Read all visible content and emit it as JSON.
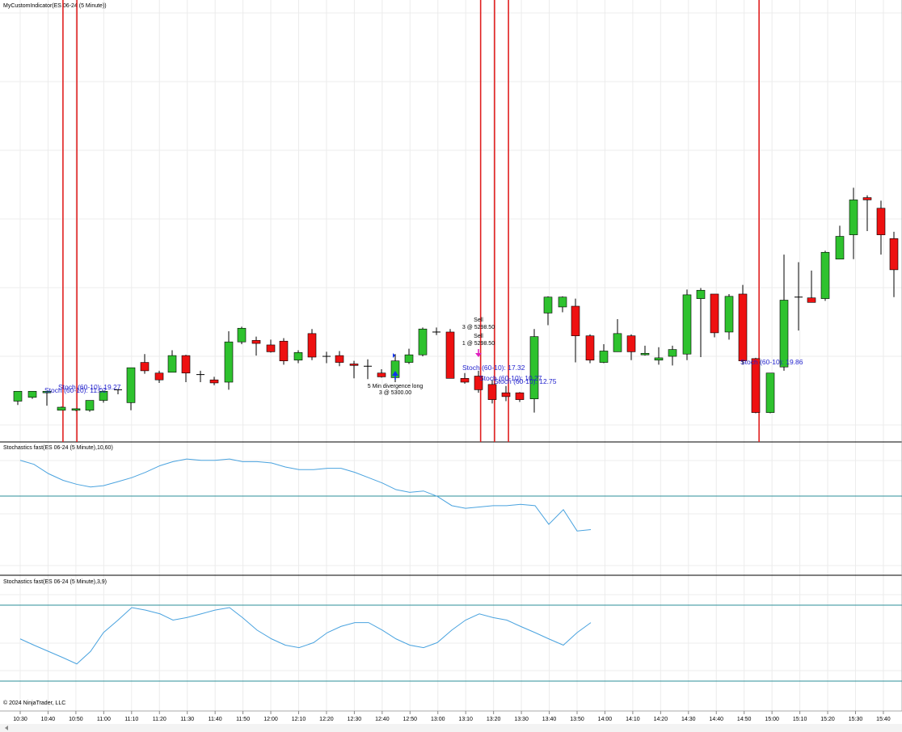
{
  "window": {
    "title": "MyCustomIndicator(ES 06-24 (5 Minute))"
  },
  "panels": {
    "stoch1_title": "Stochastics fast(ES 06-24 (5 Minute),10,60)",
    "stoch2_title": "Stochastics fast(ES 06-24 (5 Minute),3,9)"
  },
  "footer": {
    "copyright": "© 2024 NinjaTrader, LLC"
  },
  "colors": {
    "up_candle": "#2ec22e",
    "down_candle": "#ee1111",
    "wick": "#000000",
    "signal_line": "#e02020",
    "stoch_line": "#4aa3df",
    "level_line": "#2b8f9a",
    "grid": "#ececec",
    "label_text": "#1f1fcc",
    "buy_arrow": "#1133ee",
    "sell_arrow": "#e020c0"
  },
  "chart_data": {
    "type": "candlestick",
    "x_ticks": [
      "10:30",
      "10:40",
      "10:50",
      "11:00",
      "11:10",
      "11:20",
      "11:30",
      "11:40",
      "11:50",
      "12:00",
      "12:10",
      "12:20",
      "12:30",
      "12:40",
      "12:50",
      "13:00",
      "13:10",
      "13:20",
      "13:30",
      "13:40",
      "13:50",
      "14:00",
      "14:10",
      "14:20",
      "14:30",
      "14:40",
      "14:50",
      "15:00",
      "15:10",
      "15:20",
      "15:30",
      "15:40"
    ],
    "candles": [
      [
        22,
        2.5,
        3.8,
        3.0,
        2.0,
        2.1
      ],
      [
        40,
        3.0,
        3.8,
        3.6,
        2.8,
        2.4
      ],
      [
        58,
        3.6,
        3.8,
        3.8,
        1.9,
        2.5
      ],
      [
        76,
        1.3,
        1.7,
        1.8,
        1.3,
        1.2
      ],
      [
        94,
        1.3,
        1.5,
        1.5,
        1.2,
        1.2
      ],
      [
        111,
        1.3,
        2.6,
        2.6,
        1.1,
        2.0
      ],
      [
        128,
        2.6,
        3.8,
        3.9,
        2.3,
        3.0
      ],
      [
        146,
        4.0,
        3.9,
        4.0,
        3.4,
        3.4
      ],
      [
        162,
        2.3,
        6.9,
        6.9,
        1.3,
        3.1
      ],
      [
        179,
        7.6,
        6.5,
        8.7,
        6.1,
        6.2
      ],
      [
        197,
        6.2,
        5.3,
        6.5,
        4.9,
        6.0
      ],
      [
        213,
        6.3,
        8.5,
        9.2,
        6.3,
        9.9
      ],
      [
        230,
        8.5,
        6.2,
        8.6,
        5.0,
        7.3
      ],
      [
        248,
        6.0,
        6.0,
        6.5,
        5.0,
        8.8
      ],
      [
        265,
        5.3,
        4.9,
        5.7,
        4.6,
        6.4
      ],
      [
        283,
        5.0,
        10.3,
        11.7,
        4.0,
        6.4
      ],
      [
        299,
        10.3,
        12.1,
        12.3,
        10.0,
        6.9
      ],
      [
        317,
        10.5,
        10.1,
        11.0,
        8.5,
        4.0
      ],
      [
        335,
        9.9,
        9.0,
        10.6,
        8.9,
        5.0
      ],
      [
        351,
        10.4,
        7.8,
        10.8,
        7.3,
        2.6
      ],
      [
        369,
        7.9,
        8.9,
        9.2,
        7.5,
        5.4
      ],
      [
        386,
        11.4,
        8.3,
        12.0,
        7.9,
        6.5
      ],
      [
        404,
        8.4,
        8.4,
        9.0,
        7.5,
        3.8
      ],
      [
        420,
        8.5,
        7.6,
        9.1,
        7.1,
        3.5
      ],
      [
        438,
        7.4,
        7.2,
        7.8,
        5.5,
        2.0
      ],
      [
        455,
        7.1,
        7.0,
        8.0,
        5.4,
        1.3
      ],
      [
        472,
        6.2,
        5.7,
        6.7,
        5.6,
        1.6
      ],
      [
        489,
        5.6,
        7.8,
        8.7,
        5.0,
        1.1
      ],
      [
        506,
        7.6,
        8.6,
        9.4,
        7.4,
        1.7
      ],
      [
        523,
        8.6,
        12.0,
        12.2,
        8.4,
        9.0
      ],
      [
        540,
        11.5,
        11.6,
        12.2,
        11.2,
        9.1
      ],
      [
        557,
        11.6,
        5.5,
        12.0,
        5.5,
        7.5
      ],
      [
        575,
        5.5,
        5.0,
        6.2,
        4.8,
        6.6
      ],
      [
        592,
        5.8,
        4.0,
        6.5,
        3.6,
        5.1
      ],
      [
        609,
        4.7,
        2.7,
        5.3,
        2.2,
        4.0
      ],
      [
        626,
        3.6,
        3.1,
        4.5,
        2.5,
        2.3
      ],
      [
        643,
        3.6,
        2.7,
        3.7,
        2.4,
        1.1
      ],
      [
        661,
        2.8,
        11.0,
        12.0,
        1.0,
        0.8
      ],
      [
        678,
        14.1,
        16.2,
        16.3,
        12.5,
        2.5
      ],
      [
        696,
        14.9,
        16.2,
        16.3,
        14.2,
        4.8
      ],
      [
        712,
        15.0,
        11.1,
        16.0,
        7.6,
        5.6
      ],
      [
        730,
        11.1,
        7.9,
        11.3,
        7.5,
        4.6
      ],
      [
        747,
        7.6,
        9.1,
        10.0,
        7.5,
        3.8
      ],
      [
        764,
        9.0,
        11.4,
        13.3,
        9.0,
        4.0
      ],
      [
        781,
        11.1,
        9.0,
        11.3,
        7.9,
        3.2
      ],
      [
        798,
        8.6,
        8.8,
        9.8,
        8.5,
        2.3
      ],
      [
        815,
        7.9,
        8.2,
        9.6,
        7.3,
        1.3
      ],
      [
        832,
        8.4,
        9.3,
        9.8,
        7.2,
        1.5
      ],
      [
        850,
        8.7,
        16.5,
        17.2,
        7.9,
        2.7
      ],
      [
        867,
        16.0,
        17.1,
        17.4,
        8.3,
        2.9
      ],
      [
        884,
        16.6,
        11.5,
        16.6,
        10.9,
        3.3
      ],
      [
        902,
        11.6,
        16.3,
        16.6,
        10.6,
        2.5
      ],
      [
        919,
        16.6,
        7.8,
        17.8,
        7.3,
        3.2
      ],
      [
        935,
        8.1,
        1.0,
        8.2,
        0.9,
        2.3
      ],
      [
        953,
        1.0,
        6.2,
        6.1,
        0.9,
        1.3
      ],
      [
        970,
        7.0,
        15.8,
        21.8,
        6.5,
        1.5
      ],
      [
        988,
        16.2,
        16.1,
        20.8,
        11.8,
        1.7
      ],
      [
        1004,
        16.1,
        15.5,
        19.7,
        15.5,
        2.0
      ],
      [
        1021,
        16.0,
        22.1,
        22.3,
        15.7,
        2.2
      ],
      [
        1039,
        21.2,
        24.2,
        25.6,
        22.3,
        2.5
      ],
      [
        1056,
        24.4,
        29.0,
        30.6,
        21.2,
        3.8
      ],
      [
        1073,
        29.3,
        29.0,
        29.6,
        24.9,
        4.5
      ],
      [
        1090,
        27.9,
        24.4,
        28.9,
        21.8,
        5.9
      ],
      [
        1106,
        23.9,
        19.8,
        24.8,
        16.2,
        9.0
      ]
    ],
    "signal_lines_at": [
      "10:50",
      "10:55",
      "13:20",
      "13:25",
      "13:30",
      "15:00"
    ],
    "annotations": [
      {
        "label": "Stoch (60-10): 11.02"
      },
      {
        "label": "Stoch (60-10): 19.27"
      },
      {
        "label": "5 Min divergence long",
        "sub": "3 @ 5300.00"
      },
      {
        "label": "Sell",
        "sub": "3 @ 5298.50"
      },
      {
        "label": "Sell",
        "sub": "1 @ 5298.50"
      },
      {
        "label": "Stoch (60-10): 17.32"
      },
      {
        "label": "Stoch (60-10): 10.27"
      },
      {
        "label": "Stoch (60-10): 12.75"
      },
      {
        "label": "Stoch (60-10): 19.86"
      }
    ],
    "stoch_slow": [
      85,
      82,
      75,
      70,
      67,
      65,
      66,
      69,
      72,
      76,
      81,
      84,
      86,
      85,
      85,
      86,
      84,
      84,
      83,
      80,
      78,
      78,
      79,
      79,
      76,
      72,
      68,
      63,
      61,
      62,
      58,
      51,
      49,
      50,
      51,
      51,
      52,
      51,
      37,
      48,
      32,
      33
    ],
    "stoch_slow_x": [
      25,
      42,
      60,
      78,
      95,
      112,
      128,
      146,
      163,
      180,
      198,
      214,
      231,
      249,
      266,
      284,
      300,
      318,
      336,
      353,
      370,
      388,
      405,
      422,
      439,
      456,
      473,
      490,
      507,
      524,
      541,
      559,
      576,
      593,
      610,
      627,
      644,
      662,
      679,
      697,
      714,
      731
    ],
    "stoch_fast": [
      55,
      50,
      45,
      40,
      35,
      45,
      60,
      70,
      80,
      78,
      75,
      70,
      72,
      75,
      78,
      80,
      72,
      62,
      55,
      50,
      48,
      52,
      60,
      65,
      68,
      68,
      62,
      55,
      50,
      48,
      52,
      62,
      70,
      75,
      72,
      70,
      65,
      60,
      55,
      50,
      60,
      68
    ],
    "stoch_fast_x": [
      25,
      42,
      60,
      78,
      95,
      112,
      128,
      146,
      163,
      180,
      198,
      214,
      231,
      249,
      266,
      284,
      300,
      318,
      336,
      353,
      370,
      388,
      405,
      422,
      439,
      456,
      473,
      490,
      507,
      524,
      541,
      559,
      576,
      593,
      610,
      627,
      644,
      662,
      679,
      697,
      714,
      731
    ]
  }
}
